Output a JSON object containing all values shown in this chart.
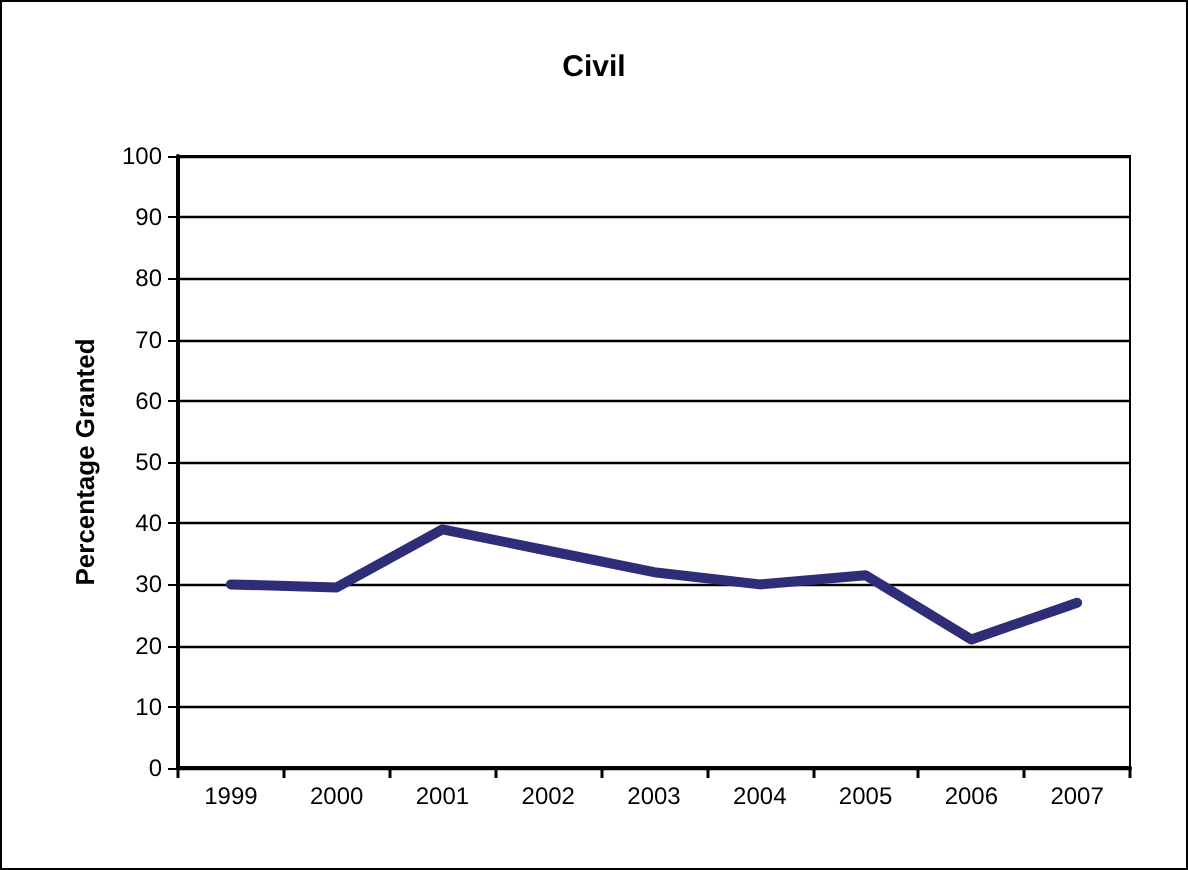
{
  "chart_data": {
    "type": "line",
    "title": "Civil",
    "ylabel": "Percentage Granted",
    "categories": [
      "1999",
      "2000",
      "2001",
      "2002",
      "2003",
      "2004",
      "2005",
      "2006",
      "2007"
    ],
    "series": [
      {
        "color": "#2e2d78",
        "values": [
          30,
          29.5,
          39,
          35.5,
          32,
          30,
          31.5,
          21,
          27
        ]
      }
    ],
    "ylim": [
      0,
      100
    ],
    "yticks": [
      0,
      10,
      20,
      30,
      40,
      50,
      60,
      70,
      80,
      90,
      100
    ],
    "grid": "y",
    "marker": "none",
    "line_style": "solid"
  }
}
